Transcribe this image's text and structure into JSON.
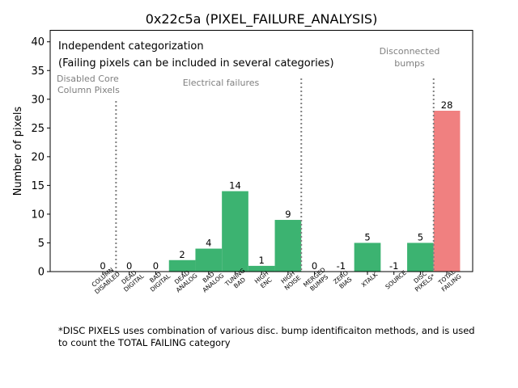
{
  "chart_data": {
    "type": "bar",
    "title": "0x22c5a (PIXEL_FAILURE_ANALYSIS)",
    "xlabel": "",
    "ylabel": "Number of pixels",
    "ylim": [
      0,
      42
    ],
    "yticks": [
      0,
      5,
      10,
      15,
      20,
      25,
      30,
      35,
      40
    ],
    "grid": false,
    "categories": [
      [
        "COLUMN",
        "DISABLED"
      ],
      [
        "DEAD",
        "DIGITAL"
      ],
      [
        "BAD",
        "DIGITAL"
      ],
      [
        "DEAD",
        "ANALOG"
      ],
      [
        "BAD",
        "ANALOG"
      ],
      [
        "TUNING",
        "BAD"
      ],
      [
        "HIGH",
        "ENC"
      ],
      [
        "HIGH",
        "NOISE"
      ],
      [
        "MERGED",
        "BUMPS"
      ],
      [
        "ZERO",
        "BIAS"
      ],
      [
        "XTALK"
      ],
      [
        "SOURCE"
      ],
      [
        "DISC",
        "PIXELS*"
      ],
      [
        "TOTAL",
        "FAILING"
      ]
    ],
    "values": [
      0,
      0,
      0,
      2,
      4,
      14,
      1,
      9,
      0,
      -1,
      5,
      -1,
      5,
      28
    ],
    "bar_colors": [
      "#3cb371",
      "#3cb371",
      "#3cb371",
      "#3cb371",
      "#3cb371",
      "#3cb371",
      "#3cb371",
      "#3cb371",
      "#3cb371",
      "#3cb371",
      "#3cb371",
      "#3cb371",
      "#3cb371",
      "#f08080"
    ],
    "separators_after_index": [
      0,
      7,
      12
    ],
    "annotations": {
      "heading_line1": "Independent categorization",
      "heading_line2": "(Failing pixels can be included in several categories)",
      "group_disabled": [
        "Disabled Core",
        "Column Pixels"
      ],
      "group_electrical": "Electrical failures",
      "group_disconnected": [
        "Disconnected",
        "bumps"
      ]
    },
    "footnote": [
      "*DISC PIXELS uses combination of various disc. bump identificaiton methods, and is used",
      "to count the TOTAL FAILING category"
    ]
  }
}
